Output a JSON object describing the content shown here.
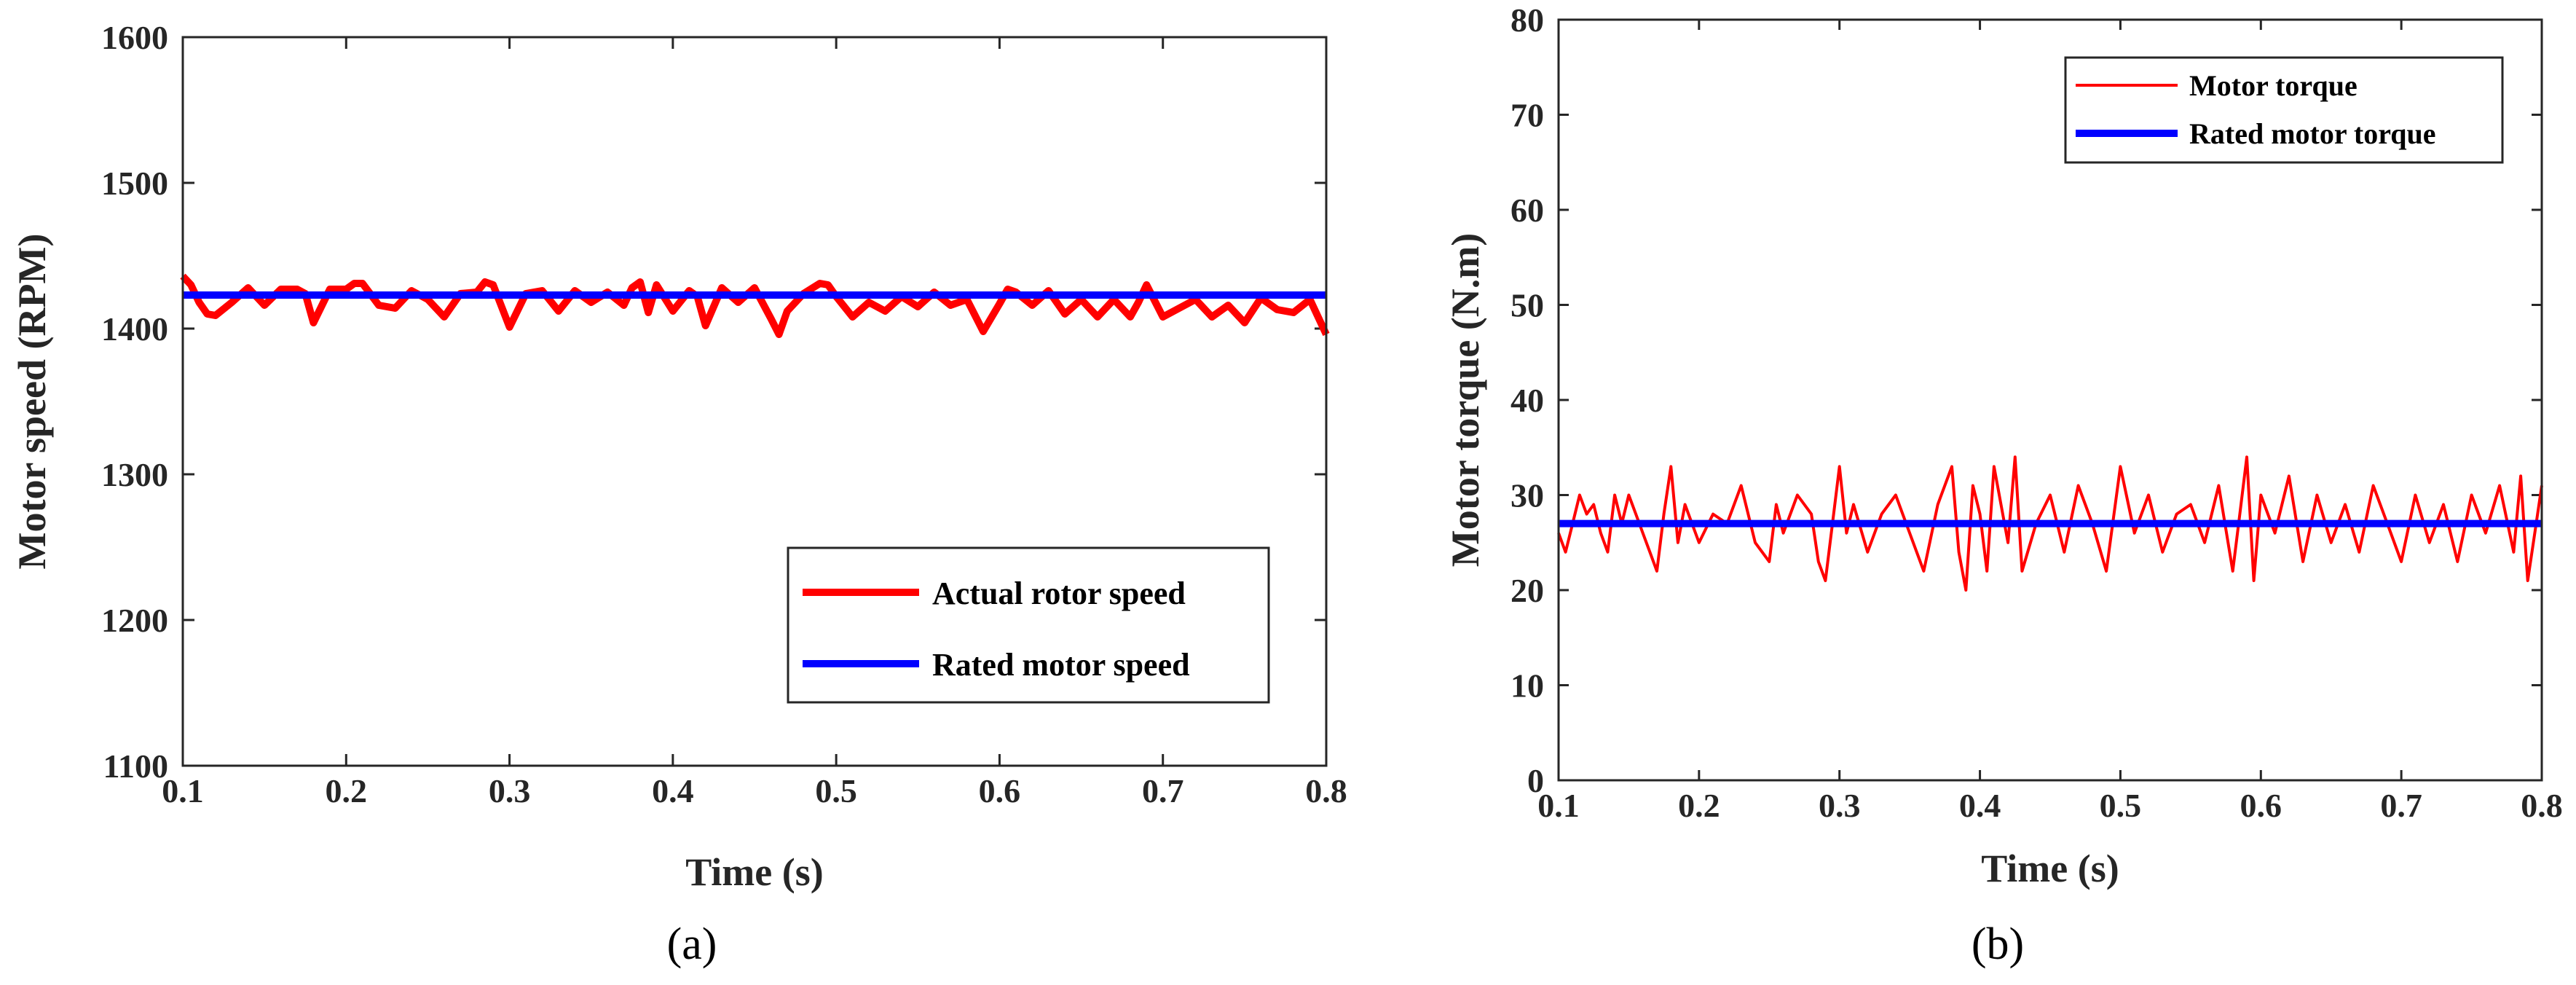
{
  "chart_data": [
    {
      "type": "line",
      "caption": "(a)",
      "xlabel": "Time (s)",
      "ylabel": "Motor speed (RPM)",
      "xlim": [
        0.1,
        0.8
      ],
      "ylim": [
        1100,
        1600
      ],
      "xticks": [
        "0.1",
        "0.2",
        "0.3",
        "0.4",
        "0.5",
        "0.6",
        "0.7",
        "0.8"
      ],
      "yticks": [
        "1100",
        "1200",
        "1300",
        "1400",
        "1500",
        "1600"
      ],
      "legend_position": "lower-right",
      "series": [
        {
          "name": "Actual rotor speed",
          "color": "#ff0000",
          "x": [
            0.1,
            0.105,
            0.11,
            0.115,
            0.12,
            0.13,
            0.14,
            0.15,
            0.16,
            0.17,
            0.175,
            0.18,
            0.19,
            0.2,
            0.205,
            0.21,
            0.22,
            0.23,
            0.24,
            0.25,
            0.26,
            0.27,
            0.28,
            0.285,
            0.29,
            0.3,
            0.31,
            0.32,
            0.33,
            0.34,
            0.35,
            0.36,
            0.37,
            0.375,
            0.38,
            0.385,
            0.39,
            0.4,
            0.41,
            0.415,
            0.42,
            0.43,
            0.44,
            0.45,
            0.46,
            0.465,
            0.47,
            0.48,
            0.49,
            0.495,
            0.5,
            0.51,
            0.52,
            0.53,
            0.54,
            0.55,
            0.56,
            0.57,
            0.58,
            0.59,
            0.6,
            0.605,
            0.61,
            0.62,
            0.63,
            0.64,
            0.65,
            0.66,
            0.67,
            0.68,
            0.685,
            0.69,
            0.7,
            0.71,
            0.72,
            0.73,
            0.74,
            0.75,
            0.76,
            0.77,
            0.78,
            0.79,
            0.795,
            0.8
          ],
          "values": [
            1436,
            1430,
            1418,
            1410,
            1409,
            1418,
            1428,
            1416,
            1427,
            1427,
            1424,
            1404,
            1427,
            1427,
            1431,
            1431,
            1416,
            1414,
            1426,
            1420,
            1408,
            1424,
            1425,
            1432,
            1430,
            1401,
            1424,
            1426,
            1412,
            1426,
            1418,
            1425,
            1416,
            1428,
            1432,
            1411,
            1430,
            1412,
            1426,
            1422,
            1402,
            1428,
            1418,
            1428,
            1407,
            1396,
            1412,
            1424,
            1431,
            1430,
            1422,
            1408,
            1418,
            1412,
            1422,
            1415,
            1425,
            1416,
            1420,
            1398,
            1417,
            1427,
            1425,
            1416,
            1426,
            1410,
            1420,
            1408,
            1420,
            1408,
            1418,
            1430,
            1408,
            1414,
            1420,
            1408,
            1416,
            1404,
            1421,
            1413,
            1411,
            1420,
            1408,
            1396
          ]
        },
        {
          "name": "Rated motor speed",
          "color": "#0000ff",
          "x": [
            0.1,
            0.8
          ],
          "values": [
            1423,
            1423
          ]
        }
      ]
    },
    {
      "type": "line",
      "caption": "(b)",
      "xlabel": "Time (s)",
      "ylabel": "Motor torque (N.m)",
      "xlim": [
        0.1,
        0.8
      ],
      "ylim": [
        0,
        80
      ],
      "xticks": [
        "0.1",
        "0.2",
        "0.3",
        "0.4",
        "0.5",
        "0.6",
        "0.7",
        "0.8"
      ],
      "yticks": [
        "0",
        "10",
        "20",
        "30",
        "40",
        "50",
        "60",
        "70",
        "80"
      ],
      "legend_position": "top-right",
      "series": [
        {
          "name": "Motor torque",
          "color": "#ff0000",
          "x": [
            0.1,
            0.105,
            0.11,
            0.115,
            0.12,
            0.125,
            0.13,
            0.135,
            0.14,
            0.145,
            0.15,
            0.155,
            0.16,
            0.165,
            0.17,
            0.175,
            0.18,
            0.185,
            0.19,
            0.195,
            0.2,
            0.21,
            0.22,
            0.23,
            0.24,
            0.25,
            0.255,
            0.26,
            0.27,
            0.28,
            0.285,
            0.29,
            0.295,
            0.3,
            0.305,
            0.31,
            0.32,
            0.33,
            0.34,
            0.35,
            0.36,
            0.37,
            0.38,
            0.385,
            0.39,
            0.395,
            0.4,
            0.405,
            0.41,
            0.42,
            0.425,
            0.43,
            0.44,
            0.45,
            0.46,
            0.47,
            0.48,
            0.49,
            0.5,
            0.51,
            0.52,
            0.53,
            0.54,
            0.55,
            0.56,
            0.57,
            0.58,
            0.585,
            0.59,
            0.595,
            0.6,
            0.61,
            0.62,
            0.63,
            0.64,
            0.65,
            0.66,
            0.67,
            0.68,
            0.69,
            0.7,
            0.71,
            0.72,
            0.73,
            0.74,
            0.75,
            0.76,
            0.77,
            0.78,
            0.785,
            0.79,
            0.795,
            0.8
          ],
          "values": [
            26,
            24,
            27,
            30,
            28,
            29,
            26,
            24,
            30,
            27,
            30,
            28,
            26,
            24,
            22,
            28,
            33,
            25,
            29,
            27,
            25,
            28,
            27,
            31,
            25,
            23,
            29,
            26,
            30,
            28,
            23,
            21,
            27,
            33,
            26,
            29,
            24,
            28,
            30,
            26,
            22,
            29,
            33,
            24,
            20,
            31,
            28,
            22,
            33,
            25,
            34,
            22,
            27,
            30,
            24,
            31,
            27,
            22,
            33,
            26,
            30,
            24,
            28,
            29,
            25,
            31,
            22,
            28,
            34,
            21,
            30,
            26,
            32,
            23,
            30,
            25,
            29,
            24,
            31,
            27,
            23,
            30,
            25,
            29,
            23,
            30,
            26,
            31,
            24,
            32,
            21,
            26,
            31
          ]
        },
        {
          "name": "Rated motor torque",
          "color": "#0000ff",
          "x": [
            0.1,
            0.8
          ],
          "values": [
            27,
            27
          ]
        }
      ]
    }
  ]
}
